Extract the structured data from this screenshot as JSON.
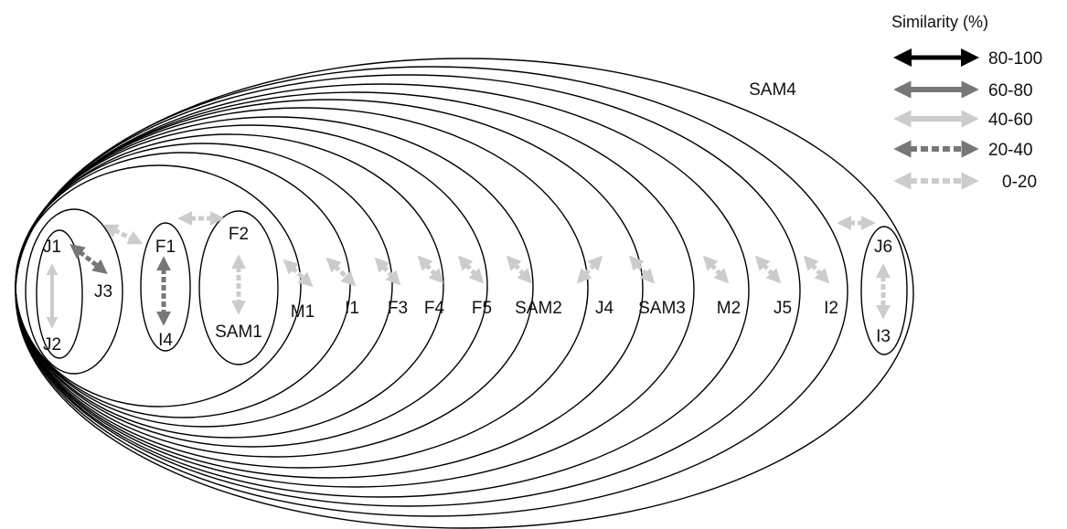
{
  "legend": {
    "title": "Similarity (%)",
    "items": [
      {
        "label": "80-100",
        "style": "solid",
        "color": "#000000"
      },
      {
        "label": "60-80",
        "style": "solid",
        "color": "#777777"
      },
      {
        "label": "40-60",
        "style": "solid",
        "color": "#cccccc"
      },
      {
        "label": "20-40",
        "style": "dashed",
        "color": "#777777"
      },
      {
        "label": "0-20",
        "style": "dashed",
        "color": "#cccccc"
      }
    ]
  },
  "nodes": {
    "J1": "J1",
    "J2": "J2",
    "J3": "J3",
    "F1": "F1",
    "I4": "I4",
    "F2": "F2",
    "SAM1": "SAM1",
    "M1": "M1",
    "I1": "I1",
    "F3": "F3",
    "F4": "F4",
    "F5": "F5",
    "SAM2": "SAM2",
    "J4": "J4",
    "SAM3": "SAM3",
    "M2": "M2",
    "J5": "J5",
    "I2": "I2",
    "J6": "J6",
    "I3": "I3",
    "SAM4": "SAM4"
  },
  "links": [
    {
      "from": "J1",
      "to": "J2",
      "similarity": "40-60"
    },
    {
      "from": "J1",
      "to": "J3",
      "similarity": "20-40"
    },
    {
      "from": "F1",
      "to": "I4",
      "similarity": "20-40"
    },
    {
      "from": "F2",
      "to": "SAM1",
      "similarity": "0-20"
    },
    {
      "from": "J1J2J3",
      "to": "F1I4",
      "similarity": "0-20"
    },
    {
      "from": "F1I4",
      "to": "F2SAM1",
      "similarity": "0-20"
    },
    {
      "from": "cluster",
      "to": "M1",
      "similarity": "0-20"
    },
    {
      "from": "cluster",
      "to": "I1",
      "similarity": "0-20"
    },
    {
      "from": "cluster",
      "to": "F3",
      "similarity": "0-20"
    },
    {
      "from": "cluster",
      "to": "F4",
      "similarity": "0-20"
    },
    {
      "from": "cluster",
      "to": "F5",
      "similarity": "0-20"
    },
    {
      "from": "cluster",
      "to": "SAM2",
      "similarity": "0-20"
    },
    {
      "from": "cluster",
      "to": "J4",
      "similarity": "0-20"
    },
    {
      "from": "cluster",
      "to": "SAM3",
      "similarity": "0-20"
    },
    {
      "from": "cluster",
      "to": "M2",
      "similarity": "0-20"
    },
    {
      "from": "cluster",
      "to": "J5",
      "similarity": "0-20"
    },
    {
      "from": "cluster",
      "to": "I2",
      "similarity": "0-20"
    },
    {
      "from": "cluster",
      "to": "J6I3",
      "similarity": "0-20"
    },
    {
      "from": "J6",
      "to": "I3",
      "similarity": "0-20"
    }
  ]
}
